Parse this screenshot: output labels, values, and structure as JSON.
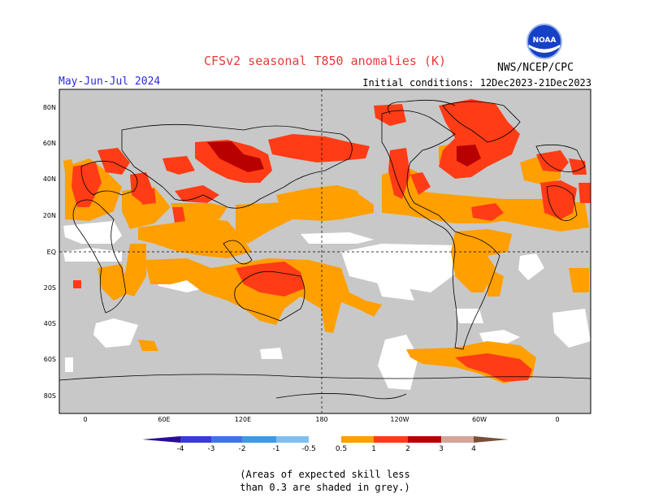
{
  "header": {
    "title": "CFSv2 seasonal T850 anomalies (K)",
    "season": "May-Jun-Jul 2024",
    "initial_conditions": "Initial conditions: 12Dec2023-21Dec2023",
    "agency": "NWS/NCEP/CPC",
    "logo_text": "NOAA"
  },
  "axes": {
    "lat_labels": [
      "80N",
      "60N",
      "40N",
      "20N",
      "EQ",
      "20S",
      "40S",
      "60S",
      "80S"
    ],
    "lon_labels": [
      "0",
      "60E",
      "120E",
      "180",
      "120W",
      "60W",
      "0"
    ]
  },
  "colorbar": {
    "labels": [
      "-4",
      "-3",
      "-2",
      "-1",
      "-0.5",
      "0.5",
      "1",
      "2",
      "3",
      "4"
    ],
    "colors": {
      "lt-4": "#2a0c9a",
      "-4_-3": "#3a3ad8",
      "-3_-2": "#3f74e8",
      "-2_-1": "#3c9ae8",
      "-1_-0.5": "#7fbff0",
      "-0.5_0.5": "#ffffff",
      "0.5_1": "#ff9f00",
      "1_2": "#ff3c16",
      "2_3": "#b80000",
      "3_4": "#d4a59a",
      "gt4": "#7a4f3a"
    }
  },
  "map_colors": {
    "unskilled": "#c8c8c8",
    "anom_0.5_1": "#ff9f00",
    "anom_1_2": "#ff3c16",
    "anom_2_3": "#b80000"
  },
  "footnote": {
    "line1": "(Areas of expected skill less",
    "line2": "than 0.3 are shaded in grey.)"
  }
}
